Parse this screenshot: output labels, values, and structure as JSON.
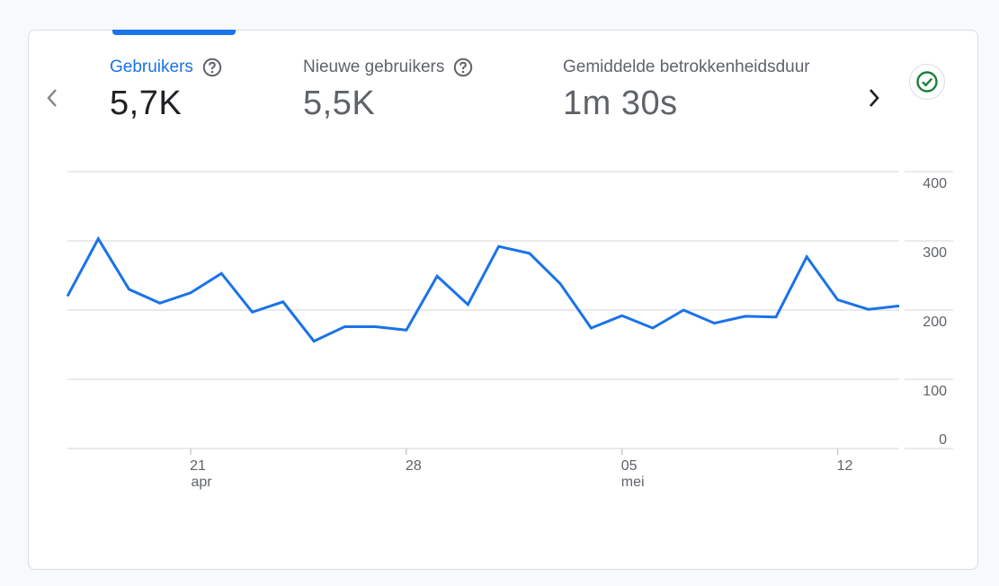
{
  "metrics": [
    {
      "label": "Gebruikers",
      "value": "5,7K",
      "active": true
    },
    {
      "label": "Nieuwe gebruikers",
      "value": "5,5K",
      "active": false
    },
    {
      "label": "Gemiddelde betrokkenheidsduur",
      "value": "1m 30s",
      "active": false
    }
  ],
  "icons": {
    "prev": "chevron-left-icon",
    "next": "chevron-right-icon",
    "help": "help-circle-icon",
    "status": "check-circle-icon"
  },
  "colors": {
    "accent": "#1a73e8",
    "line": "#1a73e8",
    "status": "#188038"
  },
  "chart_data": {
    "type": "line",
    "series": [
      {
        "values": [
          220,
          303,
          230,
          210,
          225,
          253,
          197,
          212,
          155,
          176,
          176,
          171,
          249,
          208,
          292,
          282,
          238,
          174,
          192,
          174,
          200,
          181,
          191,
          190,
          277,
          215,
          201,
          206
        ]
      }
    ],
    "x_ticks": [
      {
        "label": "21",
        "sub": "apr",
        "index": 4
      },
      {
        "label": "28",
        "sub": "",
        "index": 11
      },
      {
        "label": "05",
        "sub": "mei",
        "index": 18
      },
      {
        "label": "12",
        "sub": "",
        "index": 25
      }
    ],
    "y_ticks": [
      "400",
      "300",
      "200",
      "100",
      "0"
    ],
    "ylim": [
      0,
      400
    ],
    "grid": true
  }
}
